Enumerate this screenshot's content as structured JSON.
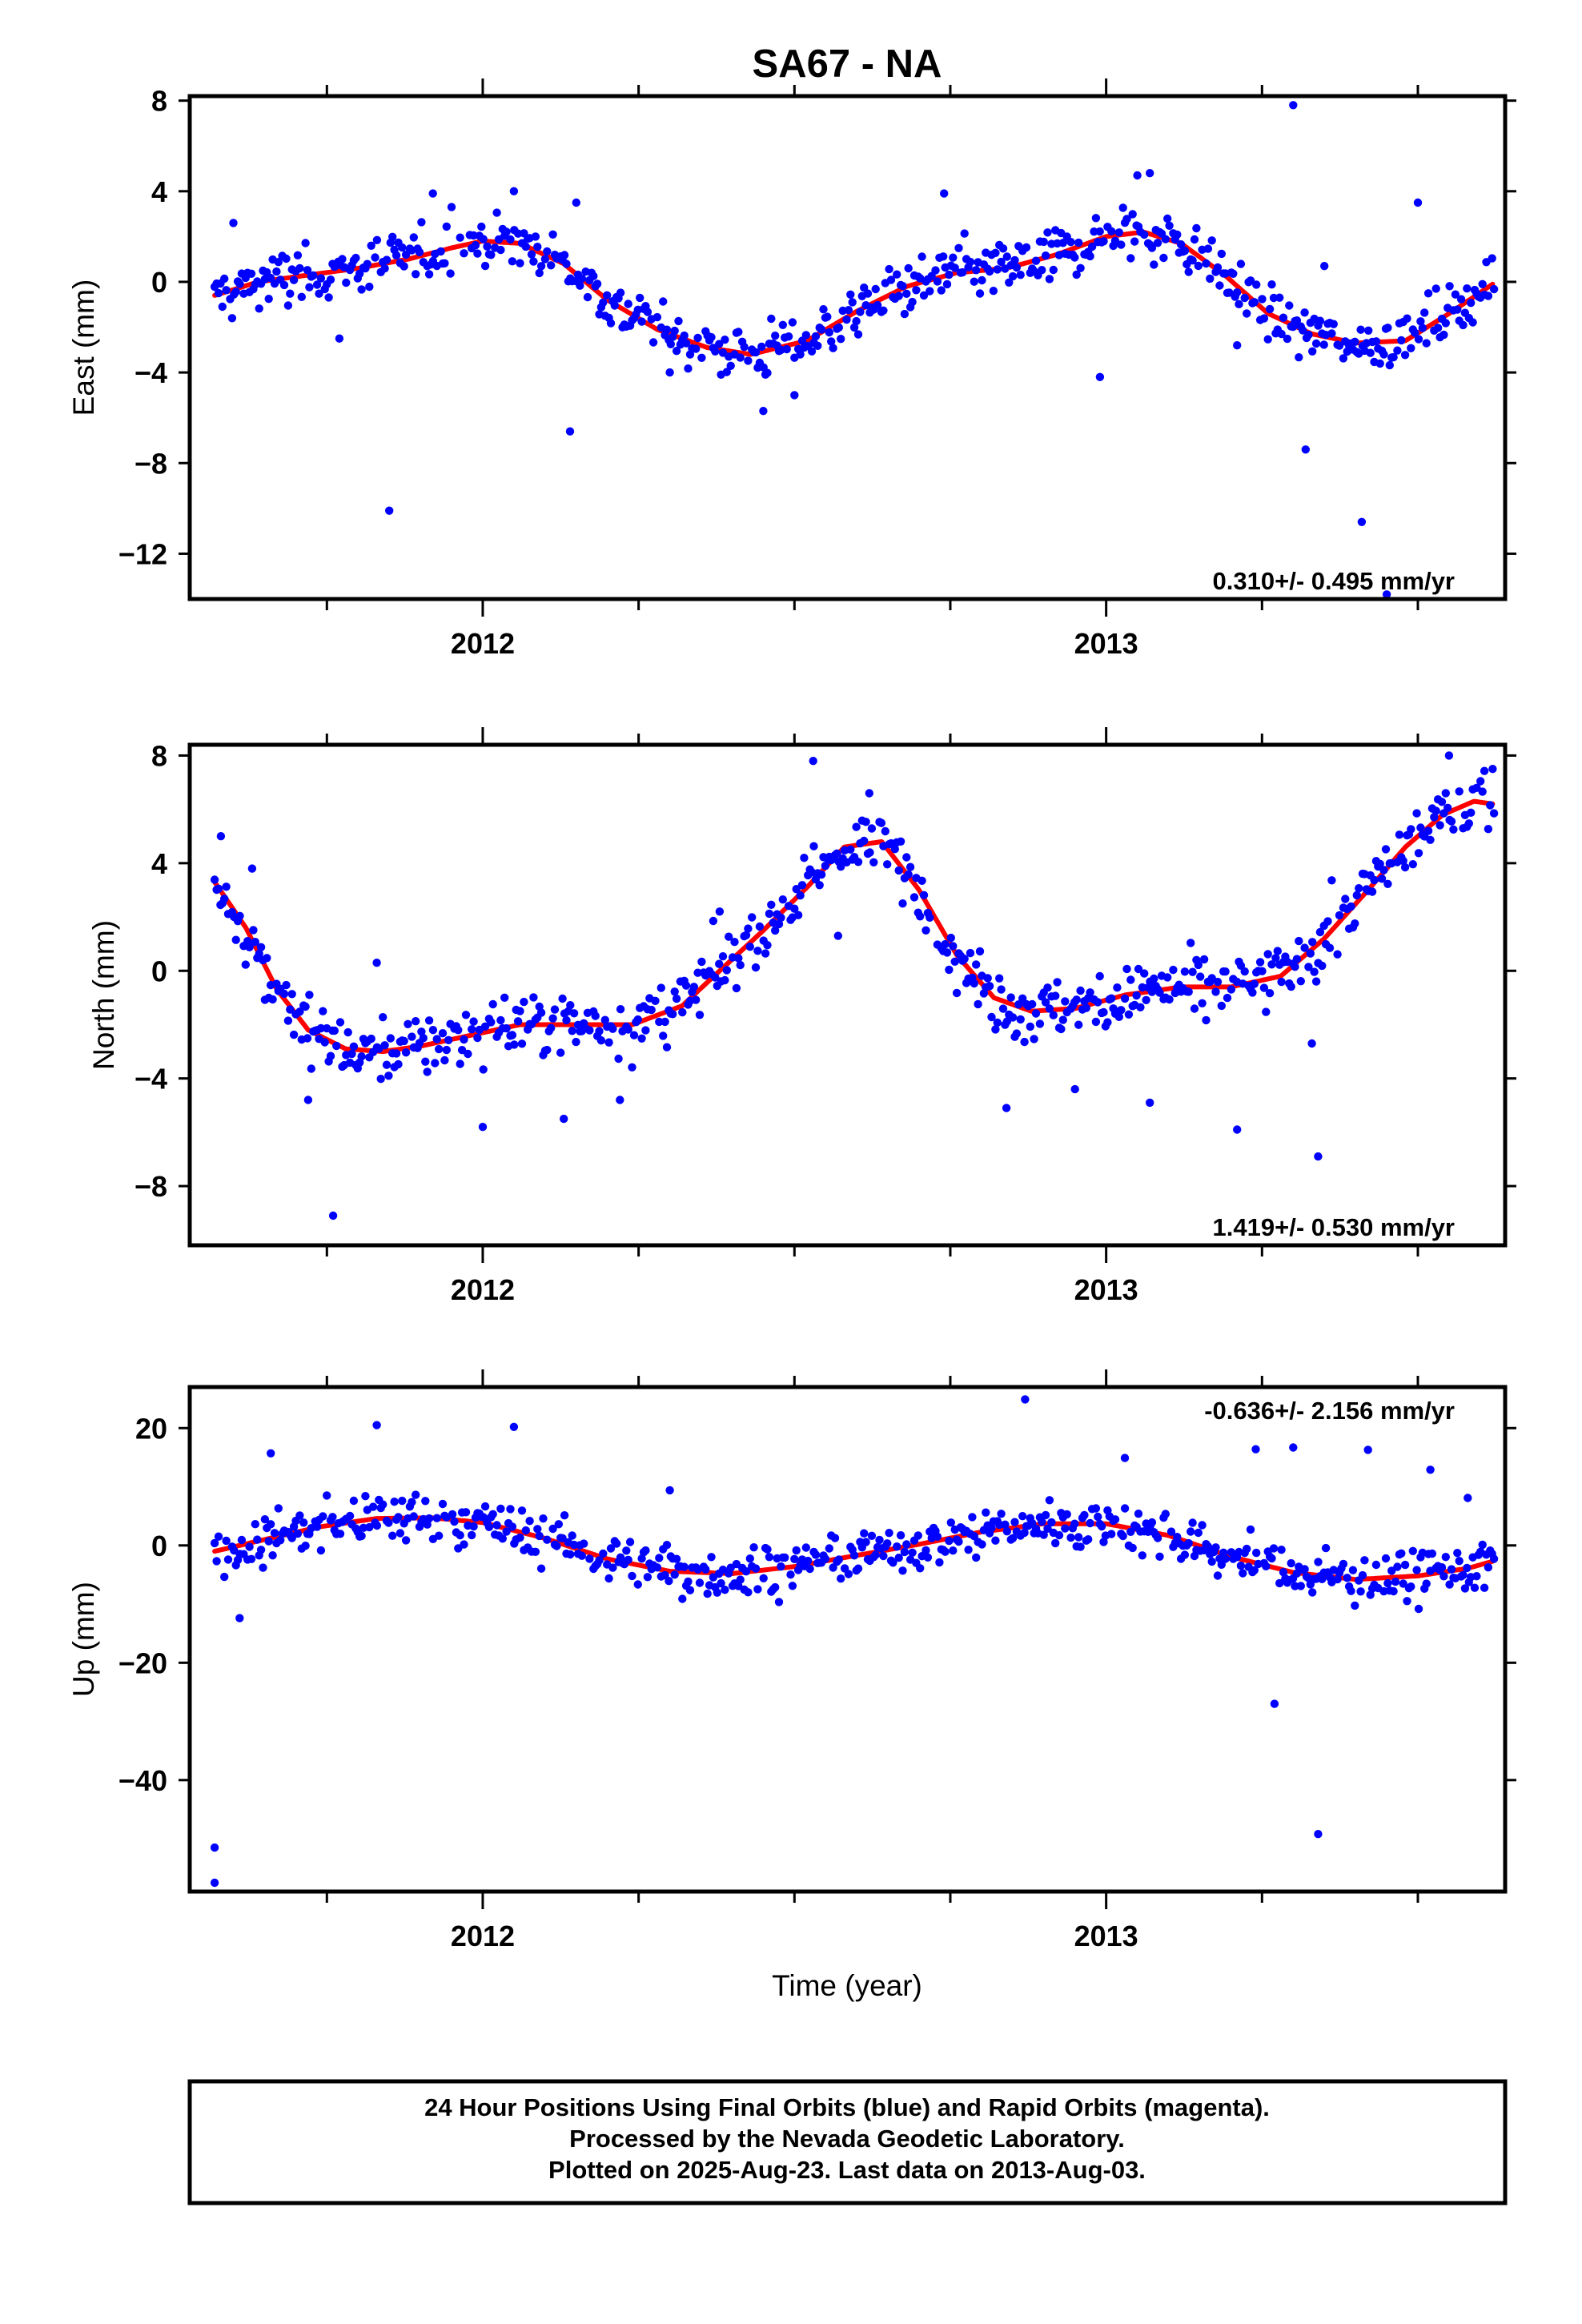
{
  "title": "SA67 - NA",
  "xlabel": "Time (year)",
  "caption": [
    "24 Hour Positions Using Final Orbits (blue) and Rapid Orbits (magenta).",
    "Processed by the Nevada Geodetic Laboratory.",
    "Plotted on 2025-Aug-23. Last data on 2013-Aug-03."
  ],
  "colors": {
    "points": "#0000ff",
    "fit": "#ff0000",
    "frame": "#000000"
  },
  "chart_data": [
    {
      "type": "scatter",
      "ylabel": "East (mm)",
      "rate_label": "0.310+/- 0.495 mm/yr",
      "xlim": [
        2011.53,
        2013.64
      ],
      "ylim": [
        -14.0,
        8.2
      ],
      "yticks": [
        8,
        4,
        0,
        -4,
        -8,
        -12
      ],
      "ytick_labels": [
        "8",
        "4",
        "0",
        "−4",
        "−8",
        "−12"
      ],
      "xtick_labels": [
        "2012",
        "2013"
      ],
      "series": [
        {
          "role": "fit",
          "x": [
            2011.57,
            2011.64,
            2011.72,
            2011.8,
            2011.88,
            2011.95,
            2012.0,
            2012.06,
            2012.13,
            2012.2,
            2012.28,
            2012.36,
            2012.43,
            2012.52,
            2012.6,
            2012.68,
            2012.76,
            2012.84,
            2012.92,
            2013.0,
            2013.06,
            2013.12,
            2013.19,
            2013.26,
            2013.33,
            2013.4,
            2013.48,
            2013.55,
            2013.62
          ],
          "y": [
            -0.6,
            0.0,
            0.3,
            0.6,
            1.0,
            1.5,
            1.8,
            1.7,
            0.8,
            -0.8,
            -2.1,
            -2.9,
            -3.2,
            -2.6,
            -1.3,
            -0.2,
            0.4,
            0.6,
            1.2,
            2.0,
            2.2,
            1.7,
            0.3,
            -1.4,
            -2.3,
            -2.7,
            -2.6,
            -1.4,
            -0.1
          ]
        },
        {
          "role": "outliers",
          "x": [
            2011.6,
            2011.77,
            2011.85,
            2011.92,
            2011.95,
            2012.05,
            2012.14,
            2012.15,
            2012.3,
            2012.45,
            2012.5,
            2012.74,
            2012.99,
            2013.05,
            2013.07,
            2013.21,
            2013.3,
            2013.32,
            2013.35,
            2013.41,
            2013.45,
            2013.5
          ],
          "y": [
            2.6,
            -2.5,
            -10.1,
            3.9,
            3.3,
            4.0,
            -6.6,
            3.5,
            -4.0,
            -5.7,
            -5.0,
            3.9,
            -4.2,
            4.7,
            4.8,
            -2.8,
            7.8,
            -7.4,
            0.7,
            -10.6,
            -13.8,
            3.5
          ]
        }
      ]
    },
    {
      "type": "scatter",
      "ylabel": "North (mm)",
      "rate_label": "1.419+/- 0.530 mm/yr",
      "xlim": [
        2011.53,
        2013.64
      ],
      "ylim": [
        -10.2,
        8.4
      ],
      "yticks": [
        8,
        4,
        0,
        -4,
        -8
      ],
      "ytick_labels": [
        "8",
        "4",
        "0",
        "−4",
        "−8"
      ],
      "xtick_labels": [
        "2012",
        "2013"
      ],
      "series": [
        {
          "role": "fit",
          "x": [
            2011.57,
            2011.62,
            2011.67,
            2011.72,
            2011.78,
            2011.84,
            2011.9,
            2011.98,
            2012.06,
            2012.15,
            2012.24,
            2012.32,
            2012.38,
            2012.45,
            2012.52,
            2012.58,
            2012.64,
            2012.7,
            2012.76,
            2012.82,
            2012.88,
            2012.95,
            2013.03,
            2013.12,
            2013.2,
            2013.28,
            2013.35,
            2013.42,
            2013.48,
            2013.54,
            2013.59,
            2013.62
          ],
          "y": [
            3.3,
            1.6,
            -0.7,
            -2.2,
            -2.9,
            -3.0,
            -2.8,
            -2.4,
            -2.0,
            -2.0,
            -2.0,
            -1.3,
            0.0,
            1.5,
            3.1,
            4.6,
            4.8,
            3.0,
            0.6,
            -1.0,
            -1.5,
            -1.4,
            -0.9,
            -0.6,
            -0.6,
            -0.2,
            1.2,
            3.0,
            4.6,
            5.8,
            6.3,
            6.2
          ]
        },
        {
          "role": "outliers",
          "x": [
            2011.58,
            2011.63,
            2011.72,
            2011.76,
            2011.83,
            2012.0,
            2012.13,
            2012.22,
            2012.38,
            2012.53,
            2012.57,
            2012.62,
            2012.84,
            2012.95,
            2013.07,
            2013.21,
            2013.33,
            2013.34,
            2013.55,
            2013.62
          ],
          "y": [
            5.0,
            3.8,
            -4.8,
            -9.1,
            0.3,
            -5.8,
            -5.5,
            -4.8,
            2.2,
            7.8,
            1.3,
            6.6,
            -5.1,
            -4.4,
            -4.9,
            -5.9,
            -2.7,
            -6.9,
            8.0,
            7.5
          ]
        }
      ]
    },
    {
      "type": "scatter",
      "ylabel": "Up (mm)",
      "rate_label": "-0.636+/- 2.156 mm/yr",
      "xlim": [
        2011.53,
        2013.64
      ],
      "ylim": [
        -59.0,
        27.0
      ],
      "yticks": [
        20,
        0,
        -20,
        -40
      ],
      "ytick_labels": [
        "20",
        "0",
        "−20",
        "−40"
      ],
      "xtick_labels": [
        "2012",
        "2013"
      ],
      "series": [
        {
          "role": "fit",
          "x": [
            2011.57,
            2011.65,
            2011.74,
            2011.83,
            2011.92,
            2012.0,
            2012.1,
            2012.2,
            2012.3,
            2012.4,
            2012.5,
            2012.6,
            2012.7,
            2012.8,
            2012.9,
            2013.0,
            2013.1,
            2013.2,
            2013.3,
            2013.4,
            2013.5,
            2013.58,
            2013.62
          ],
          "y": [
            -1.0,
            1.0,
            3.2,
            4.6,
            4.7,
            3.9,
            1.2,
            -2.3,
            -4.4,
            -4.8,
            -3.6,
            -1.7,
            0.2,
            2.3,
            3.7,
            3.7,
            1.7,
            -1.9,
            -4.6,
            -5.8,
            -5.2,
            -3.9,
            -2.7
          ]
        },
        {
          "role": "outliers",
          "x": [
            2011.57,
            2011.57,
            2011.61,
            2011.66,
            2011.83,
            2012.05,
            2012.3,
            2012.87,
            2013.03,
            2013.24,
            2013.27,
            2013.3,
            2013.34,
            2013.42,
            2013.52,
            2013.58
          ],
          "y": [
            -57.5,
            -51.5,
            -12.4,
            15.7,
            20.5,
            20.2,
            9.4,
            24.9,
            14.9,
            16.4,
            -27.0,
            16.7,
            -49.2,
            16.3,
            12.9,
            8.1
          ]
        }
      ]
    }
  ]
}
